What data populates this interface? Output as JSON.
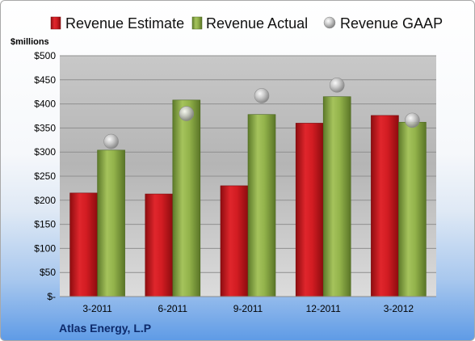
{
  "chart_data": {
    "type": "bar",
    "ylabel": "$millions",
    "categories": [
      "3-2011",
      "6-2011",
      "9-2011",
      "12-2011",
      "3-2012"
    ],
    "ylim": [
      0,
      500
    ],
    "yticks": [
      0,
      50,
      100,
      150,
      200,
      250,
      300,
      350,
      400,
      450,
      500
    ],
    "ytick_labels": [
      "$-",
      "$50",
      "$100",
      "$150",
      "$200",
      "$250",
      "$300",
      "$350",
      "$400",
      "$450",
      "$500"
    ],
    "grid": true,
    "legend_position": "top",
    "series": [
      {
        "name": "Revenue Estimate",
        "kind": "bar",
        "color": "#c0161c",
        "values": [
          215,
          213,
          230,
          360,
          376
        ]
      },
      {
        "name": "Revenue Actual",
        "kind": "bar",
        "color": "#7d9b3e",
        "values": [
          304,
          408,
          378,
          415,
          362
        ]
      },
      {
        "name": "Revenue GAAP",
        "kind": "marker",
        "color": "#a6a6a6",
        "values": [
          322,
          380,
          417,
          439,
          366
        ]
      }
    ]
  },
  "footer": {
    "company": "Atlas Energy, L.P"
  }
}
